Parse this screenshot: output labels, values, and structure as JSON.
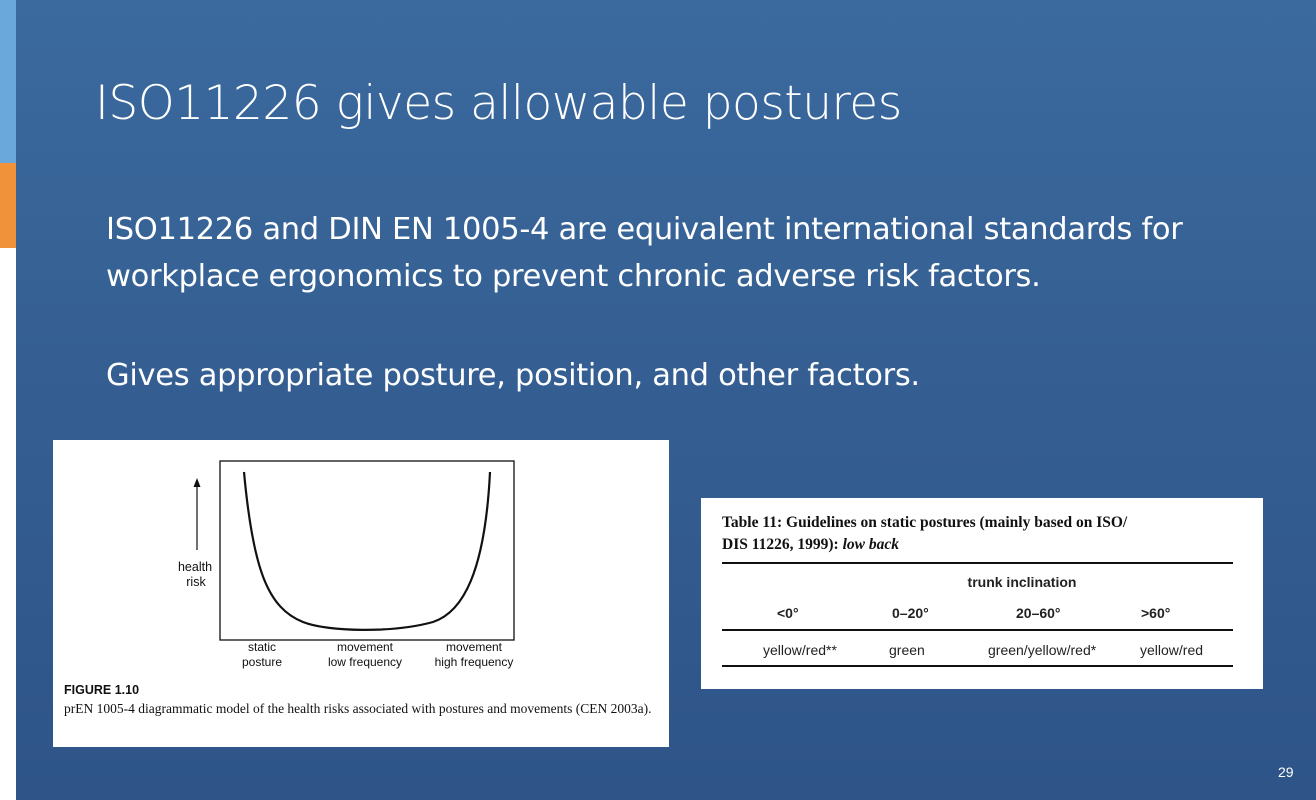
{
  "slide": {
    "title": "ISO11226 gives allowable postures",
    "paragraphs": [
      "ISO11226 and DIN EN 1005-4 are equivalent international standards for workplace ergonomics to prevent chronic adverse risk factors.",
      "Gives appropriate posture, position, and other factors."
    ],
    "page_number": "29",
    "colors": {
      "background": "#355f93",
      "accent_top": "#6aa8db",
      "accent_mid": "#f0923a"
    }
  },
  "figure": {
    "y_axis_label_line1": "health",
    "y_axis_label_line2": "risk",
    "x_labels": [
      {
        "line1": "static",
        "line2": "posture"
      },
      {
        "line1": "movement",
        "line2": "low frequency"
      },
      {
        "line1": "movement",
        "line2": "high frequency"
      }
    ],
    "caption_title": "FIGURE 1.10",
    "caption_text": "prEN 1005-4 diagrammatic model of the health risks associated with postures and movements (CEN 2003a)."
  },
  "table": {
    "caption_line1": "Table 11: Guidelines on static postures (mainly based on ISO/",
    "caption_line2_prefix": "DIS 11226, 1999): ",
    "caption_line2_italic": "low back",
    "group_header": "trunk inclination",
    "columns": [
      "<0°",
      "0–20°",
      "20–60°",
      ">60°"
    ],
    "row": [
      "yellow/red**",
      "green",
      "green/yellow/red*",
      "yellow/red"
    ]
  }
}
